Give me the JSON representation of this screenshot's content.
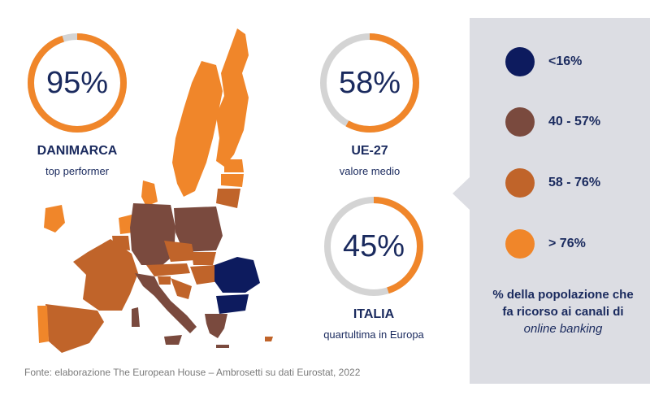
{
  "denmark": {
    "pct_label": "95%",
    "value": 95,
    "name": "DANIMARCA",
    "sub": "top performer"
  },
  "eu27": {
    "pct_label": "58%",
    "value": 58,
    "name": "UE-27",
    "sub": "valore medio"
  },
  "italy": {
    "pct_label": "45%",
    "value": 45,
    "name": "ITALIA",
    "sub": "quartultima in Europa"
  },
  "legend": {
    "items": [
      {
        "label": "<16%",
        "color": "#0d1b5e"
      },
      {
        "label": "40 - 57%",
        "color": "#7a4a3e"
      },
      {
        "label": "58 - 76%",
        "color": "#c0642a"
      },
      {
        "label": "> 76%",
        "color": "#f0862a"
      }
    ],
    "note_part1": "% della popolazione che fa ricorso ai canali di",
    "note_italic": "online banking"
  },
  "ring_colors": {
    "fill": "#f0862a",
    "track": "#d4d4d4"
  },
  "source": "Fonte: elaborazione The European House – Ambrosetti su dati Eurostat, 2022"
}
